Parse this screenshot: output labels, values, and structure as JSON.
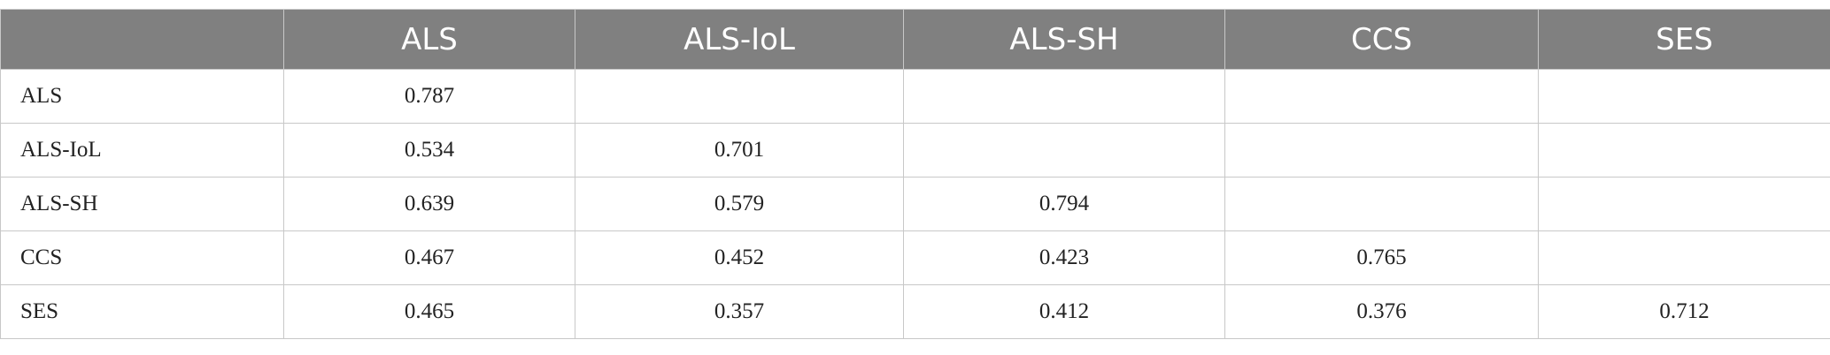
{
  "table": {
    "header": [
      "ALS",
      "ALS-IoL",
      "ALS-SH",
      "CCS",
      "SES"
    ],
    "rows": [
      {
        "label": "ALS",
        "values": [
          0.787
        ]
      },
      {
        "label": "ALS-IoL",
        "values": [
          0.534,
          0.701
        ]
      },
      {
        "label": "ALS-SH",
        "values": [
          0.639,
          0.579,
          0.794
        ]
      },
      {
        "label": "CCS",
        "values": [
          0.467,
          0.452,
          0.423,
          0.765
        ]
      },
      {
        "label": "SES",
        "values": [
          0.465,
          0.357,
          0.412,
          0.376,
          0.712
        ]
      }
    ]
  }
}
